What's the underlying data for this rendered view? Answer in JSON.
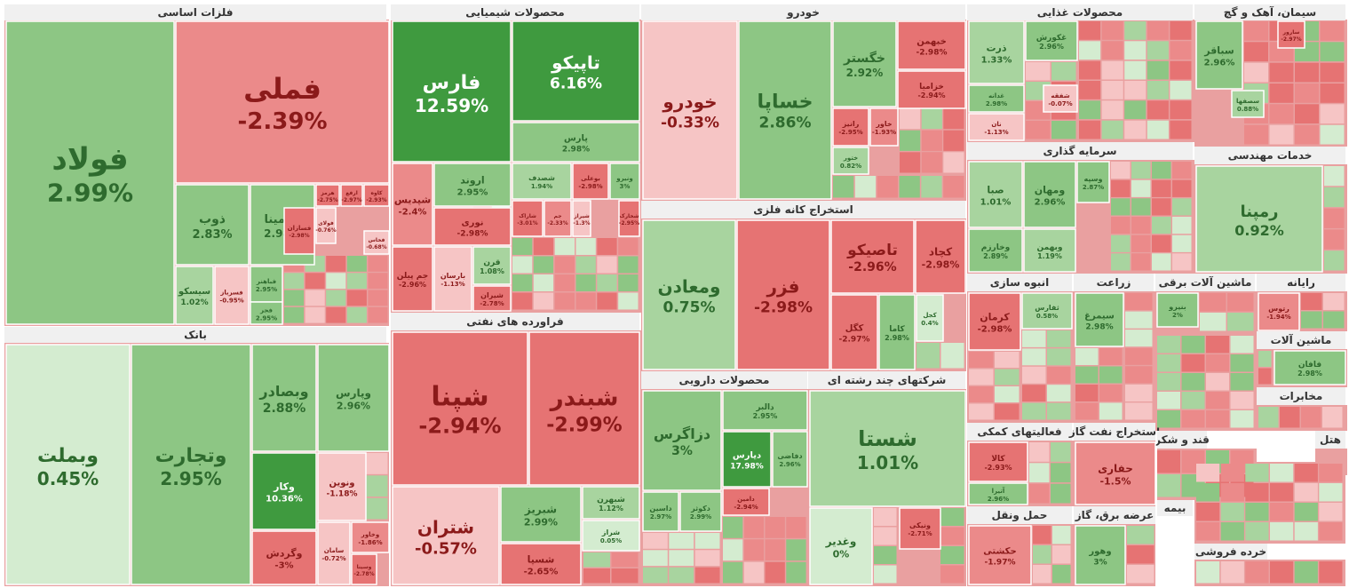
{
  "colors": {
    "pos_strong": "#3f9a3f",
    "pos_mid": "#8dc684",
    "pos_light": "#a8d49f",
    "pos_pale": "#d4ecd0",
    "neg_strong": "#e67373",
    "neg_mid": "#eb8a8a",
    "neg_pale": "#f6c5c5",
    "text_pos": "#2e6b2e",
    "text_neg": "#8b1a1a",
    "text_on_strong": "#ffffff",
    "bg_header": "#f0f0f0"
  },
  "chart_data": {
    "type": "treemap",
    "sectors": [
      {
        "name": "فلزات اساسی",
        "items": [
          {
            "name": "فولاد",
            "value": "2.99%"
          },
          {
            "name": "فملی",
            "value": "-2.39%"
          },
          {
            "name": "ذوب",
            "value": "2.83%"
          },
          {
            "name": "آلومینا",
            "value": "2.98%"
          },
          {
            "name": "سیسکو",
            "value": "1.02%"
          },
          {
            "name": "فباهنر",
            "value": "2.95%"
          },
          {
            "name": "فسرباز",
            "value": "-0.95%"
          },
          {
            "name": "فجر",
            "value": "2.95%"
          },
          {
            "name": "هرمز",
            "value": "-2.75%"
          },
          {
            "name": "ارفع",
            "value": "-2.97%"
          },
          {
            "name": "کاوه",
            "value": "-2.93%"
          },
          {
            "name": "فسازان",
            "value": "-2.98%"
          },
          {
            "name": "فولای",
            "value": "-0.76%"
          },
          {
            "name": "فخاس",
            "value": "-0.68%"
          }
        ]
      },
      {
        "name": "محصولات شیمیایی",
        "items": [
          {
            "name": "فارس",
            "value": "12.59%"
          },
          {
            "name": "تاپیکو",
            "value": "6.16%"
          },
          {
            "name": "پارس",
            "value": "2.98%"
          },
          {
            "name": "شپدیس",
            "value": "-2.4%"
          },
          {
            "name": "اروند",
            "value": "2.95%"
          },
          {
            "name": "نوری",
            "value": "-2.98%"
          },
          {
            "name": "جم پیلن",
            "value": "-2.96%"
          },
          {
            "name": "بارسان",
            "value": "-1.13%"
          },
          {
            "name": "قرن",
            "value": "1.08%"
          },
          {
            "name": "شیران",
            "value": "-2.78%"
          },
          {
            "name": "شصدف",
            "value": "1.94%"
          },
          {
            "name": "بوعلی",
            "value": "-2.98%"
          },
          {
            "name": "ونیرو",
            "value": "3%"
          },
          {
            "name": "شاراک",
            "value": "-3.01%"
          },
          {
            "name": "جم",
            "value": "-2.33%"
          },
          {
            "name": "شیراز",
            "value": "-1.3%"
          },
          {
            "name": "شخارک",
            "value": "-2.95%"
          }
        ]
      },
      {
        "name": "فراورده های نفتی",
        "items": [
          {
            "name": "شپنا",
            "value": "-2.94%"
          },
          {
            "name": "شبندر",
            "value": "-2.99%"
          },
          {
            "name": "شتران",
            "value": "-0.57%"
          },
          {
            "name": "شبریز",
            "value": "2.99%"
          },
          {
            "name": "شسپا",
            "value": "-2.65%"
          },
          {
            "name": "شبهرن",
            "value": "1.12%"
          },
          {
            "name": "شراز",
            "value": "0.05%"
          }
        ]
      },
      {
        "name": "خودرو",
        "items": [
          {
            "name": "خودرو",
            "value": "-0.33%"
          },
          {
            "name": "خساپا",
            "value": "2.86%"
          },
          {
            "name": "خگستر",
            "value": "2.92%"
          },
          {
            "name": "خبهمن",
            "value": "-2.98%"
          },
          {
            "name": "خزامیا",
            "value": "-2.94%"
          },
          {
            "name": "رانیز",
            "value": "-2.95%"
          },
          {
            "name": "خاور",
            "value": "-1.93%"
          },
          {
            "name": "ختور",
            "value": "0.82%"
          }
        ]
      },
      {
        "name": "استخراج کانه فلزی",
        "items": [
          {
            "name": "ومعادن",
            "value": "0.75%"
          },
          {
            "name": "فزر",
            "value": "-2.98%"
          },
          {
            "name": "تاصیکو",
            "value": "-2.96%"
          },
          {
            "name": "کچاد",
            "value": "-2.98%"
          },
          {
            "name": "کگل",
            "value": "-2.97%"
          },
          {
            "name": "کاما",
            "value": "2.98%"
          },
          {
            "name": "کجل",
            "value": "0.4%"
          }
        ]
      },
      {
        "name": "محصولات دارویی",
        "items": [
          {
            "name": "دزاگرس",
            "value": "3%"
          },
          {
            "name": "دالبر",
            "value": "2.95%"
          },
          {
            "name": "دیارس",
            "value": "17.98%"
          },
          {
            "name": "دفاضی",
            "value": "2.96%"
          },
          {
            "name": "داسین",
            "value": "2.97%"
          },
          {
            "name": "دکوثر",
            "value": "2.99%"
          },
          {
            "name": "دامین",
            "value": "-2.94%"
          }
        ]
      },
      {
        "name": "شرکتهای چند رشته ای",
        "items": [
          {
            "name": "شستا",
            "value": "1.01%"
          },
          {
            "name": "وغدیر",
            "value": "0%"
          },
          {
            "name": "ونیکی",
            "value": "-2.71%"
          }
        ]
      },
      {
        "name": "بانک",
        "items": [
          {
            "name": "وبملت",
            "value": "0.45%"
          },
          {
            "name": "وتجارت",
            "value": "2.95%"
          },
          {
            "name": "وبصادر",
            "value": "2.88%"
          },
          {
            "name": "وپارس",
            "value": "2.96%"
          },
          {
            "name": "وکار",
            "value": "10.36%"
          },
          {
            "name": "ونوین",
            "value": "-1.18%"
          },
          {
            "name": "وگردش",
            "value": "-3%"
          },
          {
            "name": "وخاور",
            "value": "-1.86%"
          },
          {
            "name": "وسینا",
            "value": "-2.78%"
          },
          {
            "name": "سامان",
            "value": "-0.72%"
          }
        ]
      },
      {
        "name": "محصولات غذایی",
        "items": [
          {
            "name": "ذرت",
            "value": "1.33%"
          },
          {
            "name": "غکورش",
            "value": "2.96%"
          },
          {
            "name": "غدانه",
            "value": "2.98%"
          },
          {
            "name": "شفقه",
            "value": "-0.07%"
          },
          {
            "name": "نان",
            "value": "-1.13%"
          }
        ]
      },
      {
        "name": "سیمان، آهک و گچ",
        "items": [
          {
            "name": "سباقر",
            "value": "2.96%"
          },
          {
            "name": "سارور",
            "value": "-2.97%"
          },
          {
            "name": "سصفها",
            "value": "0.88%"
          }
        ]
      },
      {
        "name": "سرمایه گذاری",
        "items": [
          {
            "name": "صبا",
            "value": "1.01%"
          },
          {
            "name": "ومهان",
            "value": "2.96%"
          },
          {
            "name": "وسپه",
            "value": "2.87%"
          },
          {
            "name": "وخارزم",
            "value": "2.89%"
          },
          {
            "name": "وبهمن",
            "value": "1.19%"
          }
        ]
      },
      {
        "name": "خدمات مهندسی",
        "items": [
          {
            "name": "رمپنا",
            "value": "0.92%"
          }
        ]
      },
      {
        "name": "انبوه سازی",
        "items": [
          {
            "name": "کرمان",
            "value": "-2.98%"
          },
          {
            "name": "ثفارس",
            "value": "0.58%"
          }
        ]
      },
      {
        "name": "زراعت",
        "items": [
          {
            "name": "سیمرغ",
            "value": "2.98%"
          }
        ]
      },
      {
        "name": "ماشین آلات برقی",
        "items": [
          {
            "name": "بنیرو",
            "value": "2%"
          }
        ]
      },
      {
        "name": "رایانه",
        "items": [
          {
            "name": "رتوس",
            "value": "-1.94%"
          }
        ]
      },
      {
        "name": "ماشین آلات",
        "items": [
          {
            "name": "فافان",
            "value": "2.98%"
          }
        ]
      },
      {
        "name": "فعالیتهای کمکی",
        "items": [
          {
            "name": "کالا",
            "value": "-2.93%"
          },
          {
            "name": "آتیرا",
            "value": "2.96%"
          }
        ]
      },
      {
        "name": "استخراج نفت گاز",
        "items": [
          {
            "name": "حفاری",
            "value": "-1.5%"
          }
        ]
      },
      {
        "name": "حمل ونقل",
        "items": [
          {
            "name": "حکشتی",
            "value": "-1.97%"
          }
        ]
      },
      {
        "name": "عرضه برق، گاز",
        "items": [
          {
            "name": "وهور",
            "value": "3%"
          }
        ]
      },
      {
        "name": "قند و شکر",
        "items": []
      },
      {
        "name": "بیمه",
        "items": []
      },
      {
        "name": "هتل",
        "items": []
      },
      {
        "name": "مخابرات",
        "items": []
      },
      {
        "name": "خرده فروشی",
        "items": []
      }
    ]
  }
}
